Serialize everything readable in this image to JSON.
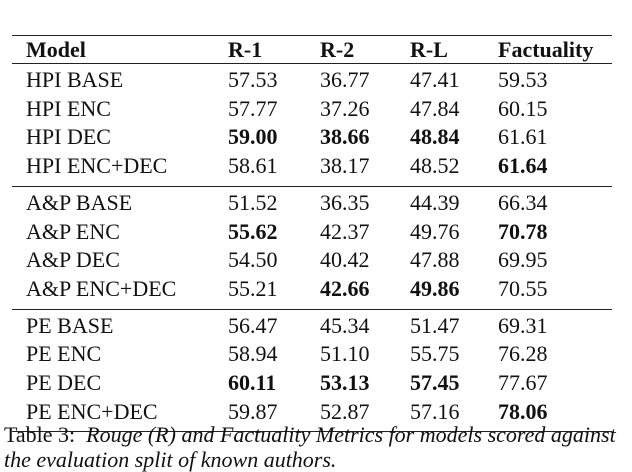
{
  "table": {
    "columns": [
      "Model",
      "R-1",
      "R-2",
      "R-L",
      "Factuality"
    ],
    "groups": [
      {
        "rows": [
          [
            "HPI BASE",
            "57.53",
            "36.77",
            "47.41",
            "59.53"
          ],
          [
            "HPI ENC",
            "57.77",
            "37.26",
            "47.84",
            "60.15"
          ],
          [
            "HPI DEC",
            {
              "text": "59.00",
              "bold": true
            },
            {
              "text": "38.66",
              "bold": true
            },
            {
              "text": "48.84",
              "bold": true
            },
            "61.61"
          ],
          [
            "HPI ENC+DEC",
            "58.61",
            "38.17",
            "48.52",
            {
              "text": "61.64",
              "bold": true
            }
          ]
        ]
      },
      {
        "rows": [
          [
            "A&P BASE",
            "51.52",
            "36.35",
            "44.39",
            "66.34"
          ],
          [
            "A&P ENC",
            {
              "text": "55.62",
              "bold": true
            },
            "42.37",
            "49.76",
            {
              "text": "70.78",
              "bold": true
            }
          ],
          [
            "A&P DEC",
            "54.50",
            "40.42",
            "47.88",
            "69.95"
          ],
          [
            "A&P ENC+DEC",
            "55.21",
            {
              "text": "42.66",
              "bold": true
            },
            {
              "text": "49.86",
              "bold": true
            },
            "70.55"
          ]
        ]
      },
      {
        "rows": [
          [
            "PE BASE",
            "56.47",
            "45.34",
            "51.47",
            "69.31"
          ],
          [
            "PE ENC",
            "58.94",
            "51.10",
            "55.75",
            "76.28"
          ],
          [
            "PE DEC",
            {
              "text": "60.11",
              "bold": true
            },
            {
              "text": "53.13",
              "bold": true
            },
            {
              "text": "57.45",
              "bold": true
            },
            "77.67"
          ],
          [
            "PE ENC+DEC",
            "59.87",
            "52.87",
            "57.16",
            {
              "text": "78.06",
              "bold": true
            }
          ]
        ]
      }
    ]
  },
  "caption": {
    "label": "Table 3:",
    "text": "Rouge (R) and Factuality Metrics for models scored against the evaluation split of known authors."
  }
}
